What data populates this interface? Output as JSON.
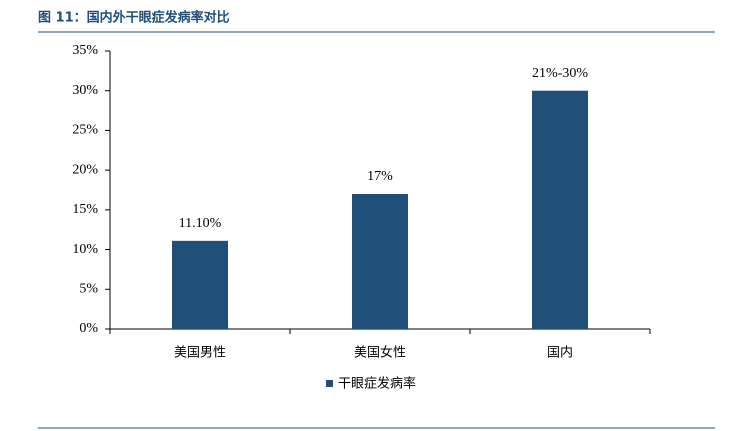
{
  "chart_data": {
    "type": "bar",
    "title": "图 11：国内外干眼症发病率对比",
    "categories": [
      "美国男性",
      "美国女性",
      "国内"
    ],
    "series": [
      {
        "name": "干眼症发病率",
        "color": "#1f4e79",
        "values": [
          11.1,
          17,
          30
        ],
        "value_labels": [
          "11.10%",
          "17%",
          "21%-30%"
        ]
      }
    ],
    "ylim": [
      0,
      35
    ],
    "yticks": [
      {
        "value": 0,
        "label": "0%"
      },
      {
        "value": 5,
        "label": "5%"
      },
      {
        "value": 10,
        "label": "10%"
      },
      {
        "value": 15,
        "label": "15%"
      },
      {
        "value": 20,
        "label": "20%"
      },
      {
        "value": 25,
        "label": "25%"
      },
      {
        "value": 30,
        "label": "30%"
      },
      {
        "value": 35,
        "label": "35%"
      }
    ],
    "grid": false,
    "legend": "bottom"
  }
}
